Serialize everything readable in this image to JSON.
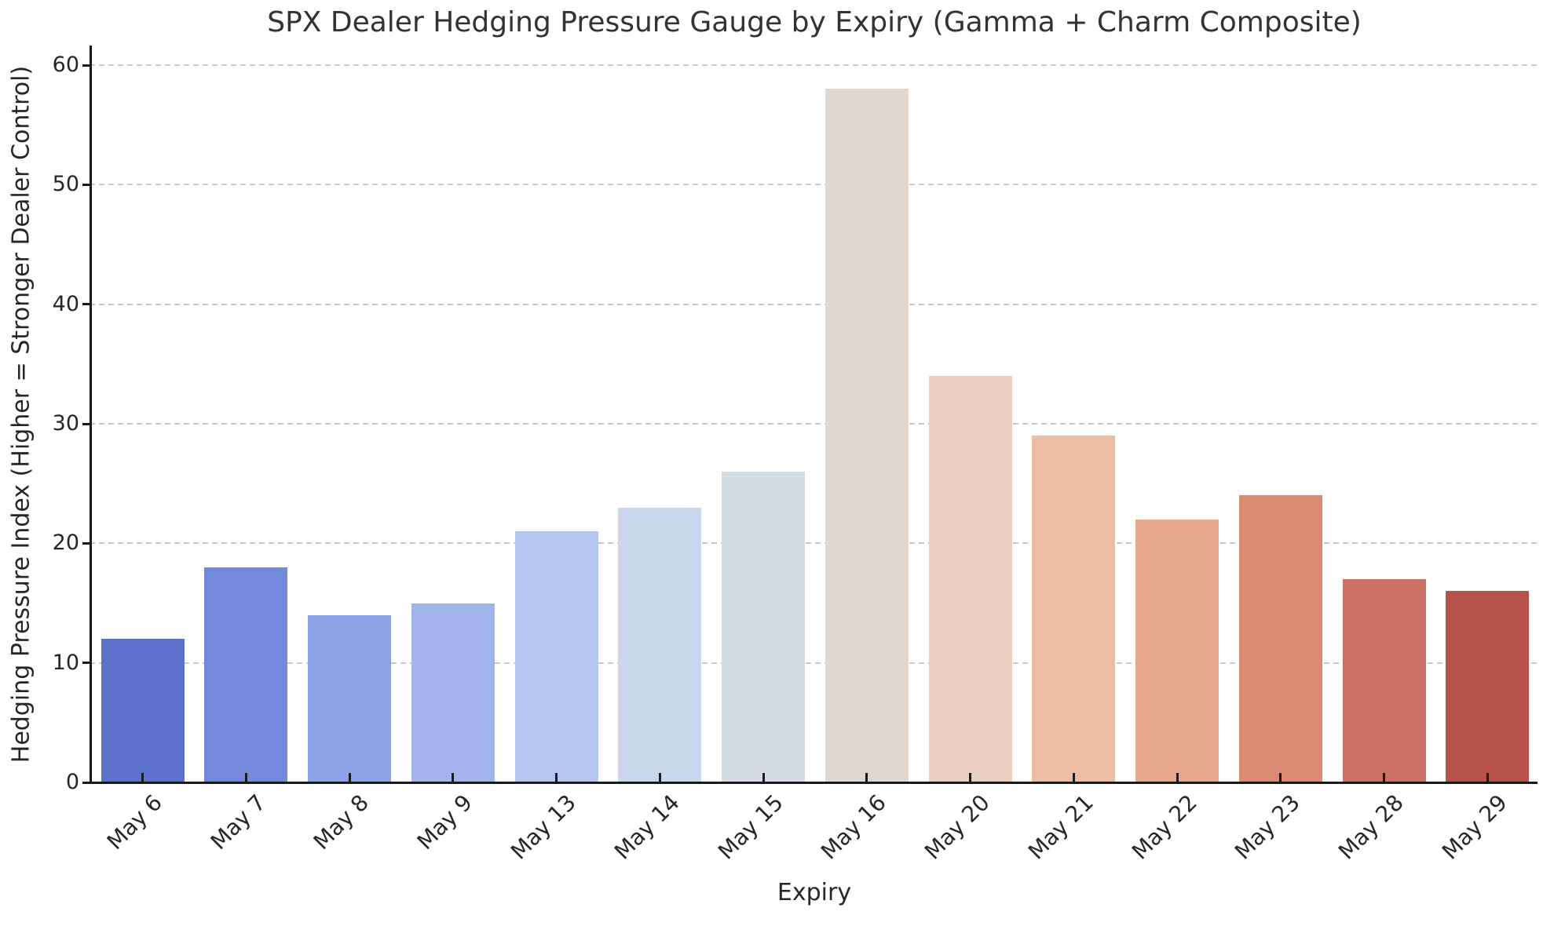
{
  "chart_data": {
    "type": "bar",
    "title": "SPX Dealer Hedging Pressure Gauge by Expiry (Gamma + Charm Composite)",
    "xlabel": "Expiry",
    "ylabel": "Hedging Pressure Index (Higher = Stronger Dealer Control)",
    "categories": [
      "May 6",
      "May 7",
      "May 8",
      "May 9",
      "May 13",
      "May 14",
      "May 15",
      "May 16",
      "May 20",
      "May 21",
      "May 22",
      "May 23",
      "May 28",
      "May 29"
    ],
    "values": [
      12,
      18,
      14,
      15,
      21,
      23,
      26,
      58,
      34,
      29,
      22,
      24,
      17,
      16
    ],
    "bar_colors": [
      "#5B72CC",
      "#7389D9",
      "#8BA1E3",
      "#A1B5EC",
      "#B4C6F0",
      "#CAD5EE",
      "#D5DBE4",
      "#E0D8D0",
      "#EBCFBE",
      "#EDBDA3",
      "#E6A78D",
      "#DA8C72",
      "#CC7063",
      "#B7524A"
    ],
    "yticks": [
      0,
      10,
      20,
      30,
      40,
      50,
      60
    ],
    "ylim": [
      0,
      61.6
    ],
    "grid": "horizontal-dashed",
    "gridline_color": "#c9c9c9",
    "axis_color": "#1a1a1a",
    "text_color": "#262626",
    "legend": "none"
  }
}
